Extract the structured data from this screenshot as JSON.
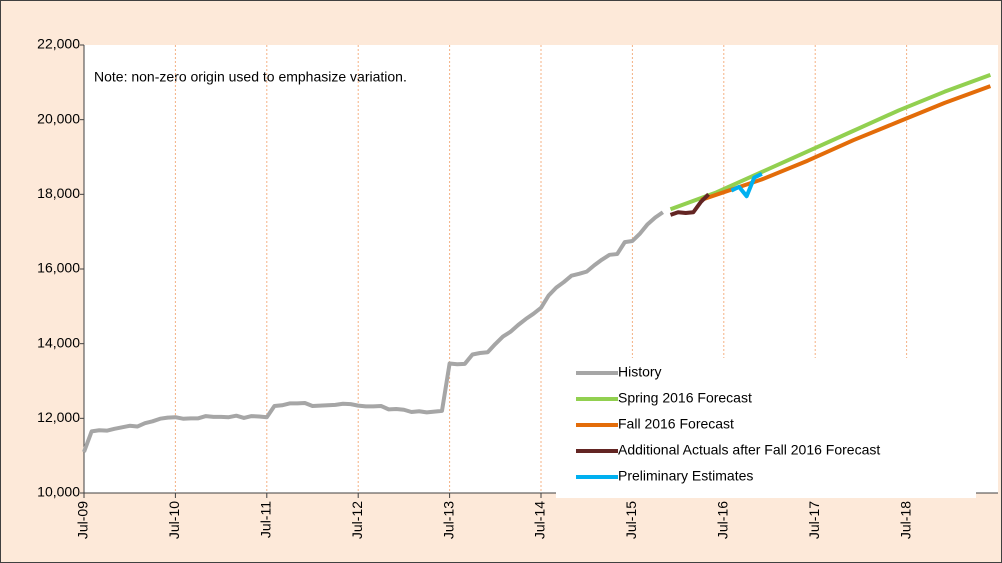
{
  "chart_data": {
    "type": "line",
    "annotation": "Note: non-zero origin used to emphasize variation.",
    "xlim": [
      "2009-07",
      "2019-07"
    ],
    "xticks": [
      {
        "value": "2009-07",
        "label": "Jul-09"
      },
      {
        "value": "2010-07",
        "label": "Jul-10"
      },
      {
        "value": "2011-07",
        "label": "Jul-11"
      },
      {
        "value": "2012-07",
        "label": "Jul-12"
      },
      {
        "value": "2013-07",
        "label": "Jul-13"
      },
      {
        "value": "2014-07",
        "label": "Jul-14"
      },
      {
        "value": "2015-07",
        "label": "Jul-15"
      },
      {
        "value": "2016-07",
        "label": "Jul-16"
      },
      {
        "value": "2017-07",
        "label": "Jul-17"
      },
      {
        "value": "2018-07",
        "label": "Jul-18"
      }
    ],
    "ylim": [
      10000,
      22000
    ],
    "yticks": [
      {
        "value": 10000,
        "label": "10,000"
      },
      {
        "value": 12000,
        "label": "12,000"
      },
      {
        "value": 14000,
        "label": "14,000"
      },
      {
        "value": 16000,
        "label": "16,000"
      },
      {
        "value": 18000,
        "label": "18,000"
      },
      {
        "value": 20000,
        "label": "20,000"
      },
      {
        "value": 22000,
        "label": "22,000"
      }
    ],
    "grid": true,
    "legend": "lower right",
    "series": [
      {
        "name": "History",
        "color": "#a6a6a6",
        "x": [
          "2009-07",
          "2009-08",
          "2009-09",
          "2009-10",
          "2009-11",
          "2009-12",
          "2010-01",
          "2010-02",
          "2010-03",
          "2010-04",
          "2010-05",
          "2010-06",
          "2010-07",
          "2010-08",
          "2010-09",
          "2010-10",
          "2010-11",
          "2010-12",
          "2011-01",
          "2011-02",
          "2011-03",
          "2011-04",
          "2011-05",
          "2011-06",
          "2011-07",
          "2011-08",
          "2011-09",
          "2011-10",
          "2011-11",
          "2011-12",
          "2012-01",
          "2012-02",
          "2012-03",
          "2012-04",
          "2012-05",
          "2012-06",
          "2012-07",
          "2012-08",
          "2012-09",
          "2012-10",
          "2012-11",
          "2012-12",
          "2013-01",
          "2013-02",
          "2013-03",
          "2013-04",
          "2013-05",
          "2013-06",
          "2013-07",
          "2013-08",
          "2013-09",
          "2013-10",
          "2013-11",
          "2013-12",
          "2014-01",
          "2014-02",
          "2014-03",
          "2014-04",
          "2014-05",
          "2014-06",
          "2014-07",
          "2014-08",
          "2014-09",
          "2014-10",
          "2014-11",
          "2014-12",
          "2015-01",
          "2015-02",
          "2015-03",
          "2015-04",
          "2015-05",
          "2015-06",
          "2015-07",
          "2015-08",
          "2015-09",
          "2015-10",
          "2015-11"
        ],
        "values": [
          11100,
          11650,
          11680,
          11670,
          11720,
          11760,
          11800,
          11780,
          11870,
          11920,
          11990,
          12020,
          12030,
          11990,
          12000,
          12000,
          12060,
          12040,
          12040,
          12030,
          12070,
          12010,
          12060,
          12050,
          12030,
          12330,
          12350,
          12400,
          12400,
          12410,
          12330,
          12340,
          12350,
          12360,
          12390,
          12380,
          12340,
          12320,
          12320,
          12330,
          12240,
          12250,
          12230,
          12170,
          12190,
          12160,
          12180,
          12200,
          13470,
          13450,
          13460,
          13710,
          13750,
          13770,
          13990,
          14190,
          14320,
          14500,
          14660,
          14800,
          14960,
          15290,
          15500,
          15650,
          15820,
          15870,
          15930,
          16100,
          16250,
          16380,
          16400,
          16720,
          16750,
          16950,
          17200,
          17380,
          17520
        ]
      },
      {
        "name": "Spring 2016 Forecast",
        "color": "#92d050",
        "x": [
          "2015-12",
          "2016-06",
          "2016-12",
          "2017-06",
          "2017-12",
          "2018-06",
          "2018-12",
          "2019-06"
        ],
        "values": [
          17600,
          18050,
          18600,
          19150,
          19700,
          20250,
          20750,
          21200
        ]
      },
      {
        "name": "Fall 2016 Forecast",
        "color": "#e36c09",
        "x": [
          "2016-04",
          "2016-12",
          "2017-06",
          "2017-12",
          "2018-06",
          "2018-12",
          "2019-06"
        ],
        "values": [
          17850,
          18400,
          18900,
          19450,
          19950,
          20450,
          20900
        ]
      },
      {
        "name": "Additional Actuals after Fall 2016 Forecast",
        "color": "#632523",
        "x": [
          "2015-12",
          "2016-01",
          "2016-02",
          "2016-03",
          "2016-04",
          "2016-05"
        ],
        "values": [
          17450,
          17520,
          17500,
          17520,
          17800,
          18000
        ]
      },
      {
        "name": "Preliminary Estimates",
        "color": "#00b0f0",
        "x": [
          "2016-08",
          "2016-09",
          "2016-10",
          "2016-11",
          "2016-12"
        ],
        "values": [
          18100,
          18200,
          17950,
          18450,
          18550
        ]
      }
    ]
  }
}
